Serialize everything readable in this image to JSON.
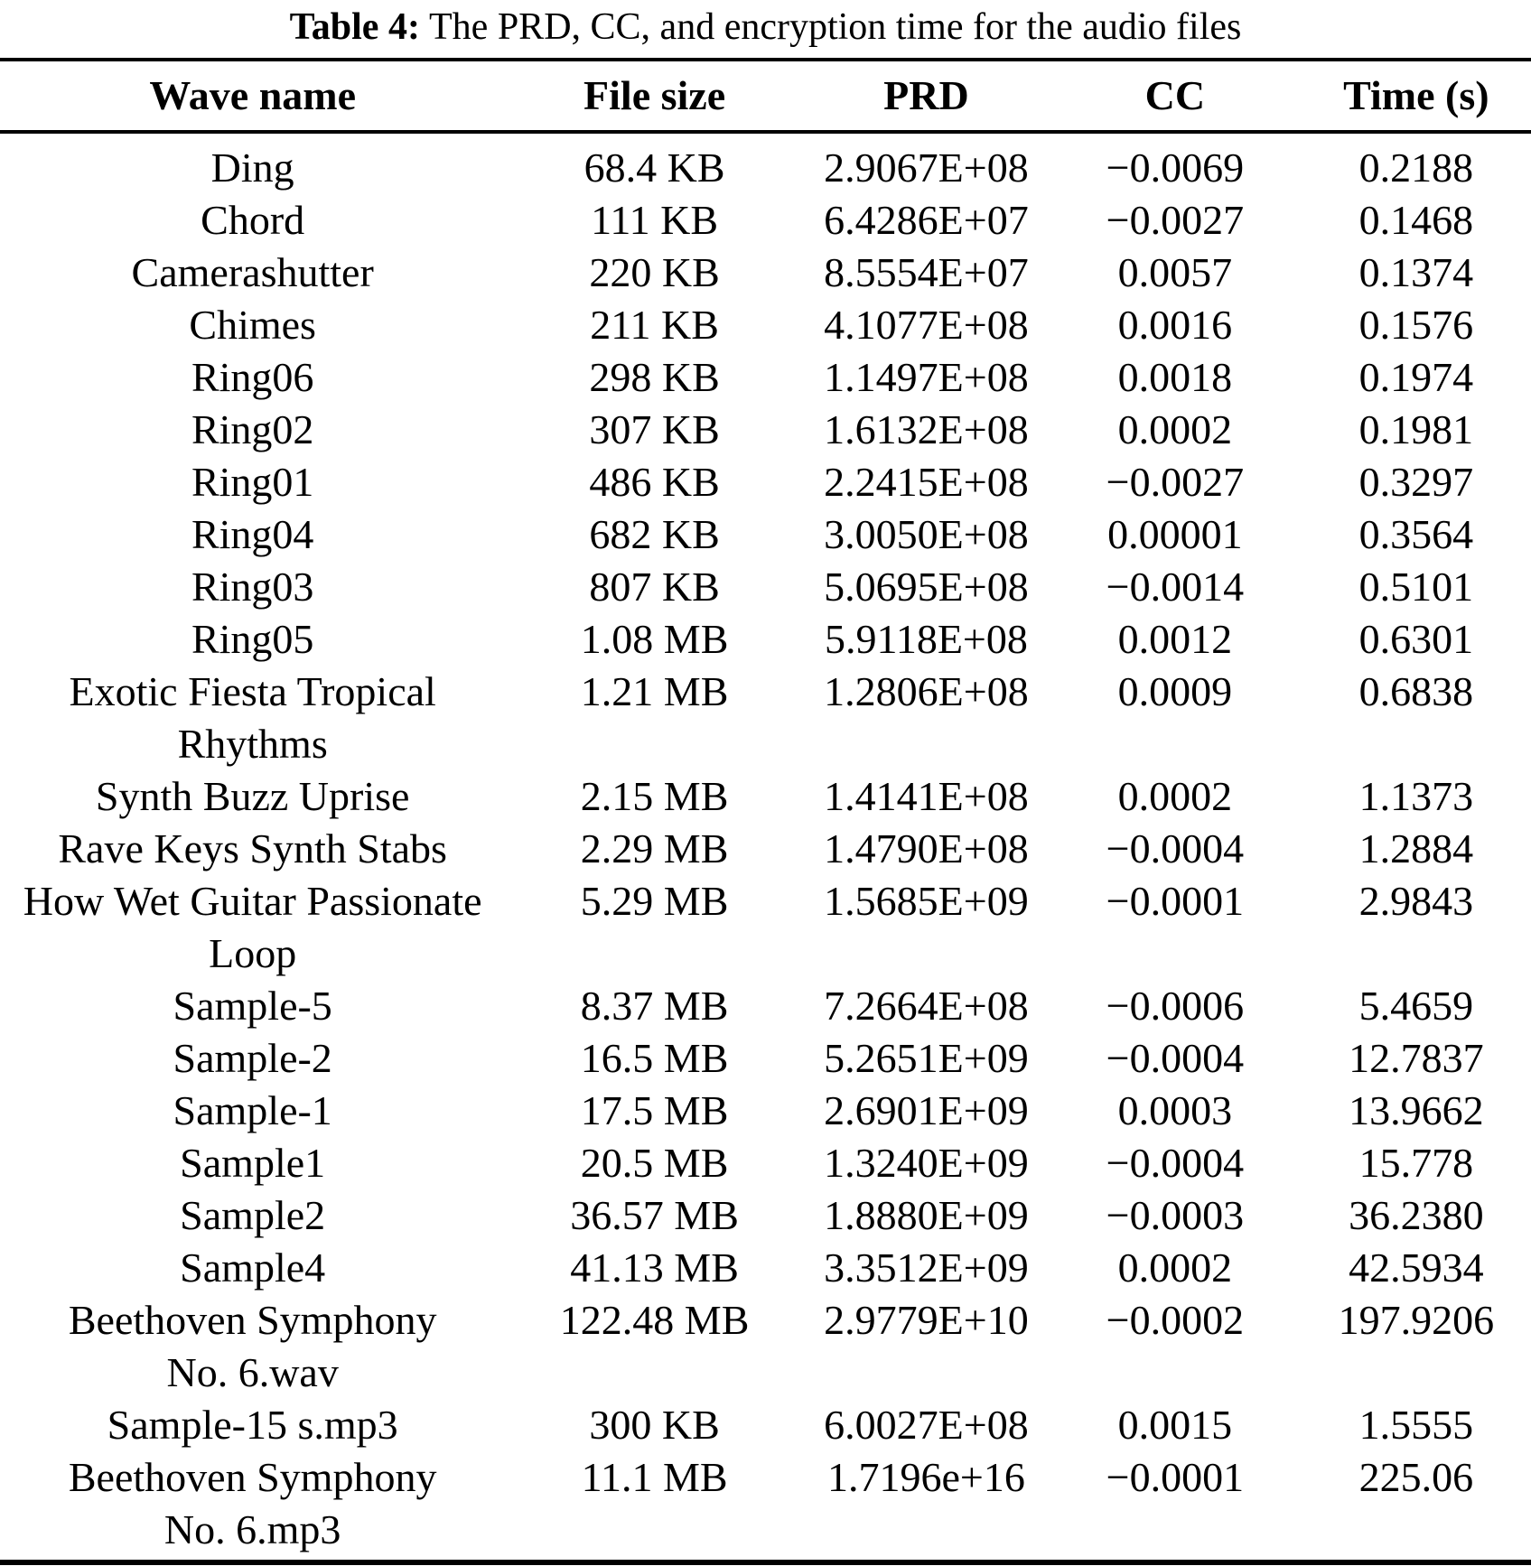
{
  "caption": {
    "label": "Table 4:",
    "text": "The PRD, CC, and encryption time for the audio files"
  },
  "table": {
    "headers": [
      "Wave name",
      "File size",
      "PRD",
      "CC",
      "Time (s)"
    ],
    "rows": [
      {
        "wave_name": "Ding",
        "file_size": "68.4 KB",
        "prd": "2.9067E+08",
        "cc": "−0.0069",
        "time_s": "0.2188"
      },
      {
        "wave_name": "Chord",
        "file_size": "111 KB",
        "prd": "6.4286E+07",
        "cc": "−0.0027",
        "time_s": "0.1468"
      },
      {
        "wave_name": "Camerashutter",
        "file_size": "220 KB",
        "prd": "8.5554E+07",
        "cc": "0.0057",
        "time_s": "0.1374"
      },
      {
        "wave_name": "Chimes",
        "file_size": "211 KB",
        "prd": "4.1077E+08",
        "cc": "0.0016",
        "time_s": "0.1576"
      },
      {
        "wave_name": "Ring06",
        "file_size": "298 KB",
        "prd": "1.1497E+08",
        "cc": "0.0018",
        "time_s": "0.1974"
      },
      {
        "wave_name": "Ring02",
        "file_size": "307 KB",
        "prd": "1.6132E+08",
        "cc": "0.0002",
        "time_s": "0.1981"
      },
      {
        "wave_name": "Ring01",
        "file_size": "486 KB",
        "prd": "2.2415E+08",
        "cc": "−0.0027",
        "time_s": "0.3297"
      },
      {
        "wave_name": "Ring04",
        "file_size": "682 KB",
        "prd": "3.0050E+08",
        "cc": "0.00001",
        "time_s": "0.3564"
      },
      {
        "wave_name": "Ring03",
        "file_size": "807 KB",
        "prd": "5.0695E+08",
        "cc": "−0.0014",
        "time_s": "0.5101"
      },
      {
        "wave_name": "Ring05",
        "file_size": "1.08 MB",
        "prd": "5.9118E+08",
        "cc": "0.0012",
        "time_s": "0.6301"
      },
      {
        "wave_name": "Exotic Fiesta Tropical\nRhythms",
        "file_size": "1.21 MB",
        "prd": "1.2806E+08",
        "cc": "0.0009",
        "time_s": "0.6838"
      },
      {
        "wave_name": "Synth Buzz Uprise",
        "file_size": "2.15 MB",
        "prd": "1.4141E+08",
        "cc": "0.0002",
        "time_s": "1.1373"
      },
      {
        "wave_name": "Rave Keys Synth Stabs",
        "file_size": "2.29 MB",
        "prd": "1.4790E+08",
        "cc": "−0.0004",
        "time_s": "1.2884"
      },
      {
        "wave_name": "How Wet Guitar Passionate\nLoop",
        "file_size": "5.29 MB",
        "prd": "1.5685E+09",
        "cc": "−0.0001",
        "time_s": "2.9843"
      },
      {
        "wave_name": "Sample-5",
        "file_size": "8.37 MB",
        "prd": "7.2664E+08",
        "cc": "−0.0006",
        "time_s": "5.4659"
      },
      {
        "wave_name": "Sample-2",
        "file_size": "16.5 MB",
        "prd": "5.2651E+09",
        "cc": "−0.0004",
        "time_s": "12.7837"
      },
      {
        "wave_name": "Sample-1",
        "file_size": "17.5 MB",
        "prd": "2.6901E+09",
        "cc": "0.0003",
        "time_s": "13.9662"
      },
      {
        "wave_name": "Sample1",
        "file_size": "20.5 MB",
        "prd": "1.3240E+09",
        "cc": "−0.0004",
        "time_s": "15.778"
      },
      {
        "wave_name": "Sample2",
        "file_size": "36.57 MB",
        "prd": "1.8880E+09",
        "cc": "−0.0003",
        "time_s": "36.2380"
      },
      {
        "wave_name": "Sample4",
        "file_size": "41.13 MB",
        "prd": "3.3512E+09",
        "cc": "0.0002",
        "time_s": "42.5934"
      },
      {
        "wave_name": "Beethoven Symphony\nNo. 6.wav",
        "file_size": "122.48 MB",
        "prd": "2.9779E+10",
        "cc": "−0.0002",
        "time_s": "197.9206"
      },
      {
        "wave_name": "Sample-15 s.mp3",
        "file_size": "300 KB",
        "prd": "6.0027E+08",
        "cc": "0.0015",
        "time_s": "1.5555"
      },
      {
        "wave_name": "Beethoven Symphony\nNo. 6.mp3",
        "file_size": "11.1 MB",
        "prd": "1.7196e+16",
        "cc": "−0.0001",
        "time_s": "225.06"
      }
    ]
  },
  "colors": {
    "text": "#000000",
    "background": "#ffffff",
    "rule": "#000000"
  }
}
